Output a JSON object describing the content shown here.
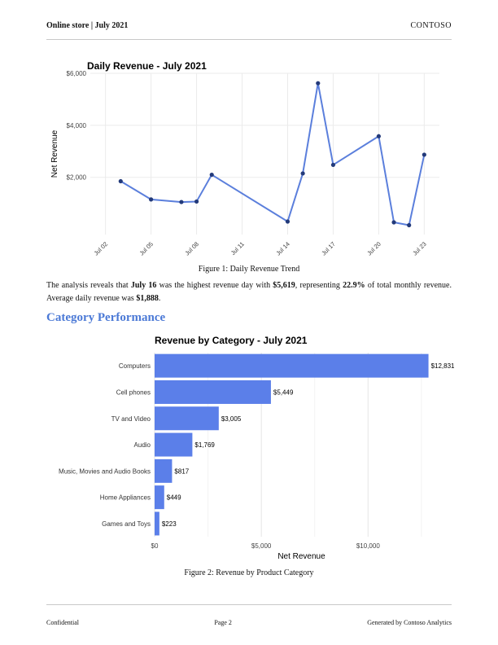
{
  "header": {
    "left": "Online store | July 2021",
    "right": "CONTOSO"
  },
  "figure1_caption": "Figure 1:  Daily Revenue Trend",
  "paragraph": {
    "p1": "The analysis reveals that ",
    "day": "July 16",
    "p2": " was the highest revenue day with ",
    "amount": "$5,619",
    "p3": ", representing ",
    "pct": "22.9%",
    "p4": " of total monthly revenue. Average daily revenue was ",
    "avg": "$1,888",
    "p5": "."
  },
  "section_title": "Category Performance",
  "figure2_caption": "Figure 2:  Revenue by Product Category",
  "footer": {
    "left": "Confidential",
    "center": "Page 2",
    "right": "Generated by Contoso Analytics"
  },
  "chart_data": [
    {
      "type": "line",
      "title": "Daily Revenue - July 2021",
      "xlabel": "",
      "ylabel": "Net Revenue",
      "x_tick_labels": [
        "Jul 02",
        "Jul 05",
        "Jul 08",
        "Jul 11",
        "Jul 14",
        "Jul 17",
        "Jul 20",
        "Jul 23"
      ],
      "x_ticks": [
        "2021-07-02",
        "2021-07-05",
        "2021-07-08",
        "2021-07-11",
        "2021-07-14",
        "2021-07-17",
        "2021-07-20",
        "2021-07-23"
      ],
      "y_ticks": [
        2000,
        4000,
        6000
      ],
      "y_tick_labels": [
        "$2,000",
        "$4,000",
        "$6,000"
      ],
      "ylim": [
        -200,
        6000
      ],
      "xlim": [
        "2021-07-01",
        "2021-07-24"
      ],
      "grid": true,
      "color": "#5b7fdc",
      "point_color": "#233a7a",
      "x": [
        "2021-07-03",
        "2021-07-05",
        "2021-07-07",
        "2021-07-08",
        "2021-07-09",
        "2021-07-14",
        "2021-07-15",
        "2021-07-16",
        "2021-07-17",
        "2021-07-20",
        "2021-07-21",
        "2021-07-22",
        "2021-07-23"
      ],
      "y": [
        1850,
        1150,
        1050,
        1070,
        2100,
        300,
        2150,
        5619,
        2480,
        3580,
        270,
        160,
        2870
      ]
    },
    {
      "type": "bar",
      "orientation": "horizontal",
      "title": "Revenue by Category - July 2021",
      "xlabel": "Net Revenue",
      "ylabel": "",
      "categories": [
        "Computers",
        "Cell phones",
        "TV and Video",
        "Audio",
        "Music, Movies and Audio Books",
        "Home Appliances",
        "Games and Toys"
      ],
      "values": [
        12831,
        5449,
        3005,
        1769,
        817,
        449,
        223
      ],
      "value_labels": [
        "$12,831",
        "$5,449",
        "$3,005",
        "$1,769",
        "$817",
        "$449",
        "$223"
      ],
      "x_ticks": [
        0,
        5000,
        10000
      ],
      "x_tick_labels": [
        "$0",
        "$5,000",
        "$10,000"
      ],
      "xlim": [
        0,
        13000
      ],
      "grid": true,
      "color": "#5b7fe9"
    }
  ]
}
